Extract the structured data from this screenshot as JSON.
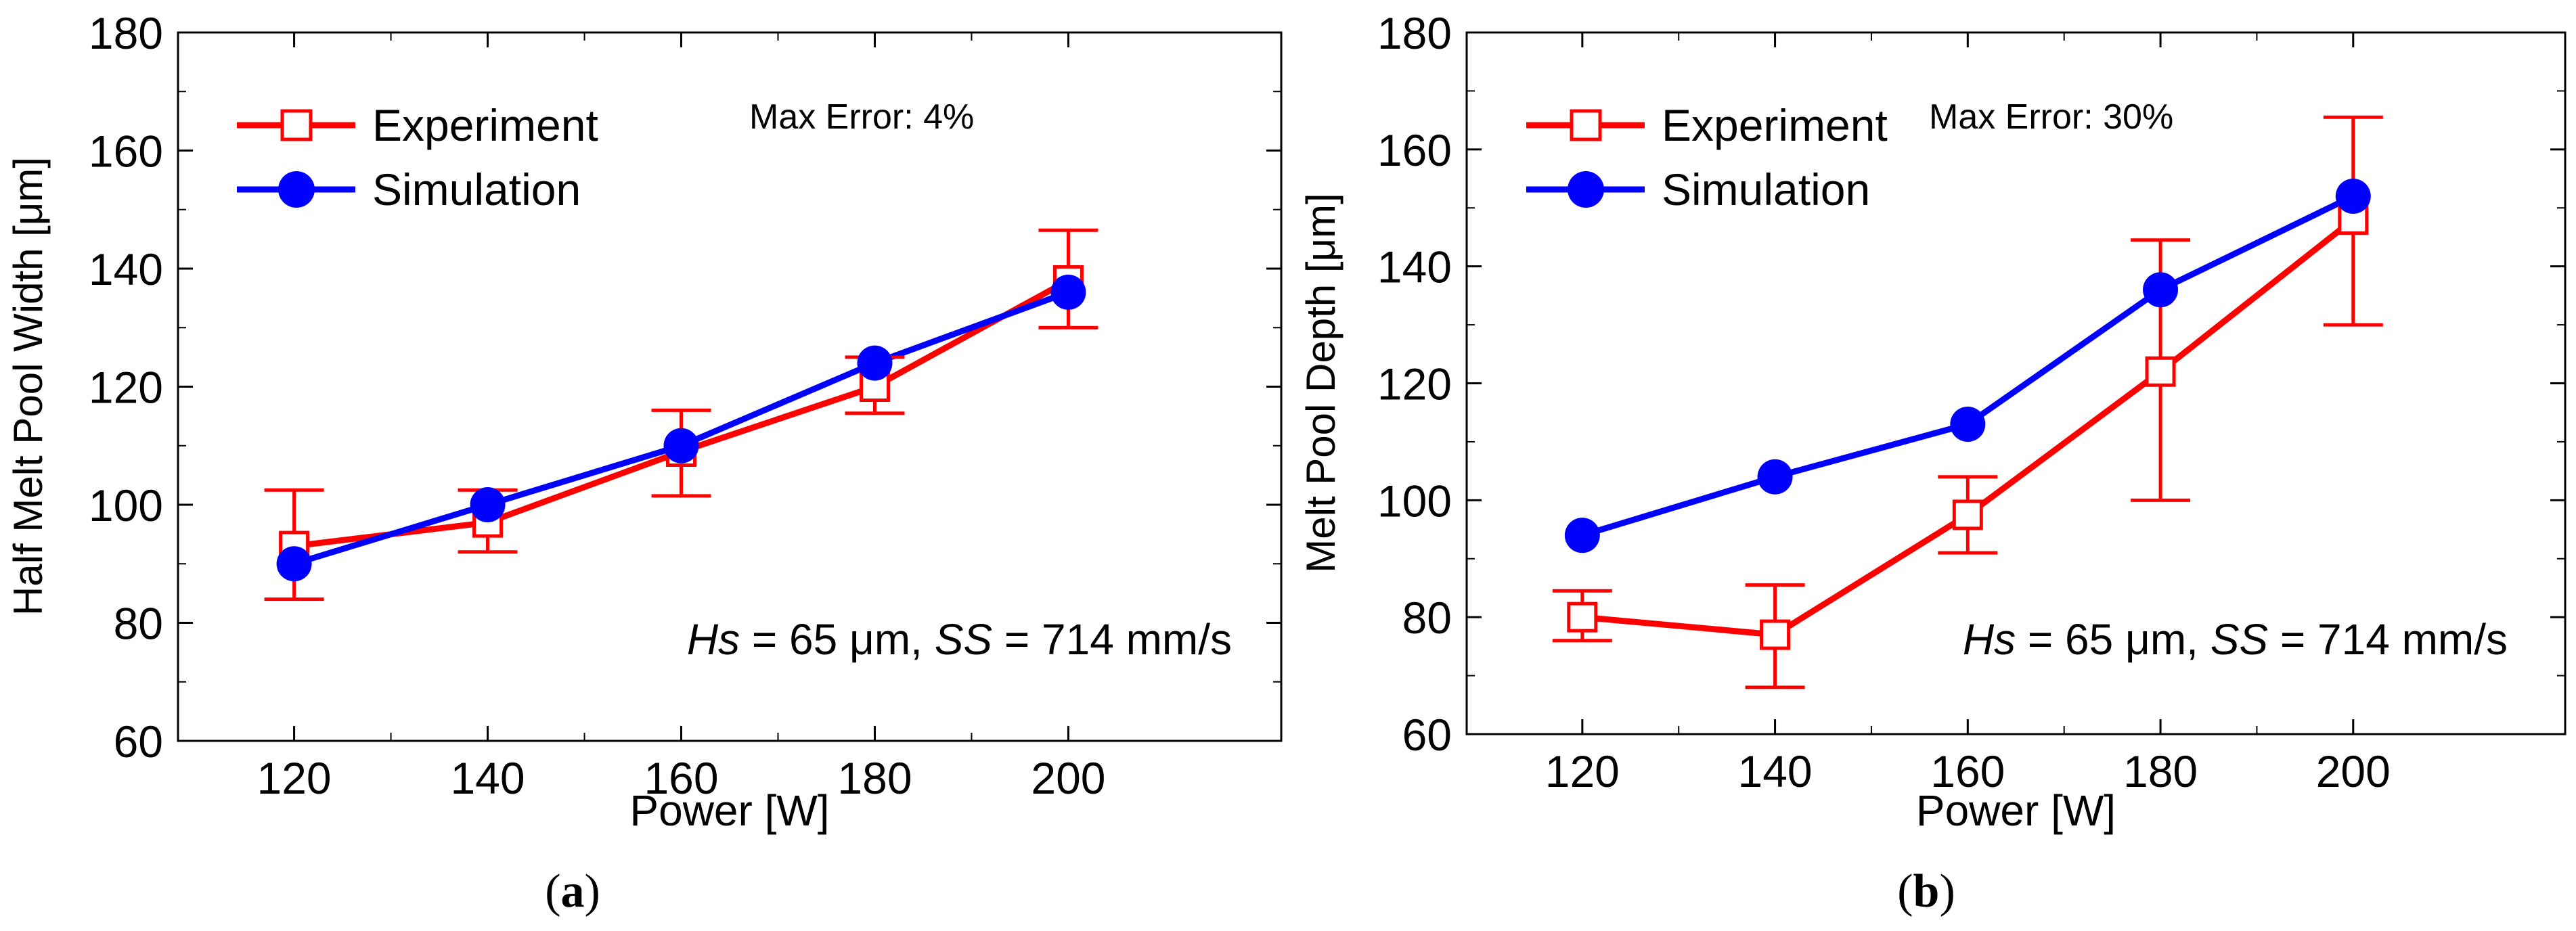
{
  "colors": {
    "experiment": "#ff0000",
    "simulation": "#0000ff",
    "axis": "#000000",
    "background": "#ffffff"
  },
  "chart_data": [
    {
      "type": "line",
      "panel_label": "a",
      "xlabel": "Power [W]",
      "ylabel": "Half Melt Pool Width [μm]",
      "xlim": [
        108,
        222
      ],
      "ylim": [
        60,
        180
      ],
      "xticks": [
        120,
        140,
        160,
        180,
        200
      ],
      "yticks": [
        60,
        80,
        100,
        120,
        140,
        160,
        180
      ],
      "annotation_error": "Max Error: 4%",
      "params": {
        "hs_var": "Hs",
        "hs_rest": " = 65 μm, ",
        "ss_var": "SS",
        "ss_rest": " = 714 mm/s"
      },
      "legend": [
        "Experiment",
        "Simulation"
      ],
      "legend_position": "top-left",
      "x": [
        120,
        140,
        160,
        180,
        200
      ],
      "series": [
        {
          "name": "Experiment",
          "marker": "open-square",
          "values": [
            93,
            97,
            109,
            120,
            138
          ],
          "error_low": [
            84,
            92,
            101.5,
            115.5,
            130
          ],
          "error_high": [
            102.5,
            102.5,
            116,
            125,
            146.5
          ]
        },
        {
          "name": "Simulation",
          "marker": "filled-circle",
          "values": [
            90,
            100,
            110,
            124,
            136
          ]
        }
      ]
    },
    {
      "type": "line",
      "panel_label": "b",
      "xlabel": "Power [W]",
      "ylabel": "Melt Pool Depth [μm]",
      "xlim": [
        108,
        222
      ],
      "ylim": [
        60,
        180
      ],
      "xticks": [
        120,
        140,
        160,
        180,
        200
      ],
      "yticks": [
        60,
        80,
        100,
        120,
        140,
        160,
        180
      ],
      "annotation_error": "Max Error: 30%",
      "params": {
        "hs_var": "Hs",
        "hs_rest": " = 65 μm, ",
        "ss_var": "SS",
        "ss_rest": " = 714 mm/s"
      },
      "legend": [
        "Experiment",
        "Simulation"
      ],
      "legend_position": "top-left",
      "x": [
        120,
        140,
        160,
        180,
        200
      ],
      "series": [
        {
          "name": "Experiment",
          "marker": "open-square",
          "values": [
            80,
            77,
            97.5,
            122,
            148
          ],
          "error_low": [
            76,
            68,
            91,
            100,
            130
          ],
          "error_high": [
            84.5,
            85.5,
            104,
            144.5,
            165.5
          ]
        },
        {
          "name": "Simulation",
          "marker": "filled-circle",
          "values": [
            94,
            104,
            113,
            136,
            152
          ]
        }
      ]
    }
  ]
}
